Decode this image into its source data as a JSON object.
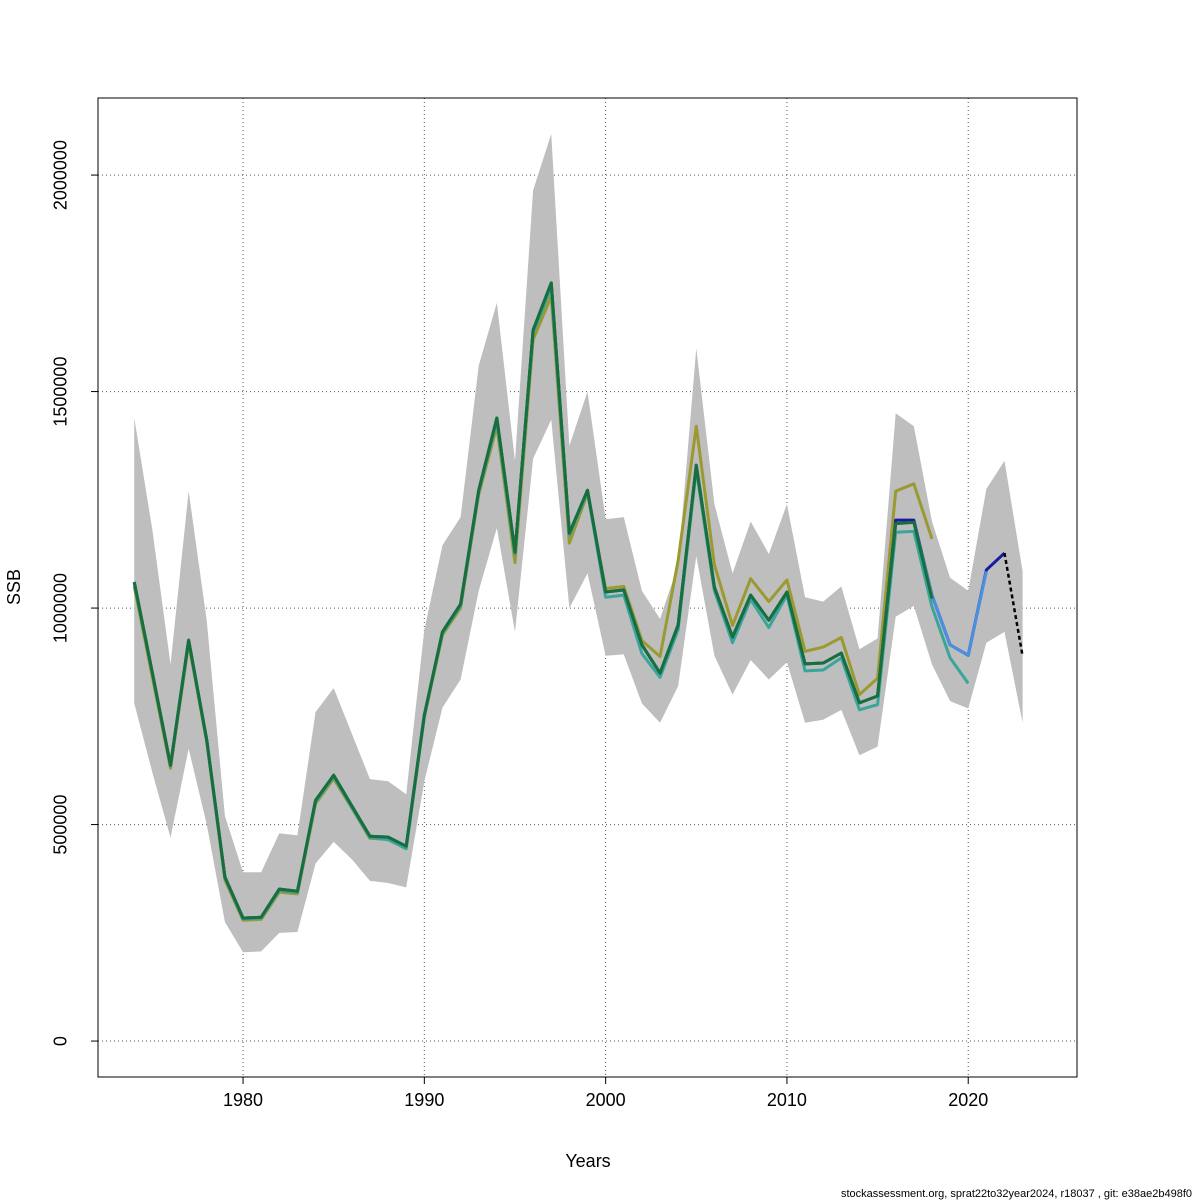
{
  "chart_data": {
    "type": "line",
    "xlabel": "Years",
    "ylabel": "SSB",
    "footnote": "stockassessment.org, sprat22to32year2024, r18037 , git: e38ae2b498f0",
    "x": [
      1974,
      1975,
      1976,
      1977,
      1978,
      1979,
      1980,
      1981,
      1982,
      1983,
      1984,
      1985,
      1986,
      1987,
      1988,
      1989,
      1990,
      1991,
      1992,
      1993,
      1994,
      1995,
      1996,
      1997,
      1998,
      1999,
      2000,
      2001,
      2002,
      2003,
      2004,
      2005,
      2006,
      2007,
      2008,
      2009,
      2010,
      2011,
      2012,
      2013,
      2014,
      2015,
      2016,
      2017,
      2018,
      2019,
      2020,
      2021,
      2022,
      2023
    ],
    "xlim": [
      1972,
      2026
    ],
    "ylim": [
      -83000,
      2178000
    ],
    "xticks": [
      1980,
      1990,
      2000,
      2010,
      2020
    ],
    "yticks": [
      0,
      500000,
      1000000,
      1500000,
      2000000
    ],
    "grid": true,
    "band": {
      "color": "#bebebe",
      "lower": [
        780000,
        620000,
        470000,
        675000,
        500000,
        275000,
        205000,
        207000,
        250000,
        252000,
        410000,
        460000,
        420000,
        370000,
        365000,
        355000,
        600000,
        770000,
        835000,
        1040000,
        1185000,
        945000,
        1345000,
        1435000,
        1000000,
        1080000,
        890000,
        893000,
        780000,
        735000,
        820000,
        1120000,
        890000,
        800000,
        880000,
        835000,
        875000,
        735000,
        742000,
        765000,
        660000,
        680000,
        980000,
        1005000,
        870000,
        785000,
        768000,
        920000,
        945000,
        735000
      ],
      "upper": [
        1439000,
        1180000,
        870000,
        1270000,
        970000,
        520000,
        390000,
        390000,
        480000,
        475000,
        760000,
        815000,
        710000,
        605000,
        600000,
        570000,
        950000,
        1145000,
        1210000,
        1560000,
        1705000,
        1340000,
        1965000,
        2095000,
        1375000,
        1500000,
        1205000,
        1210000,
        1040000,
        975000,
        1100000,
        1600000,
        1240000,
        1080000,
        1200000,
        1125000,
        1240000,
        1025000,
        1015000,
        1050000,
        905000,
        930000,
        1450000,
        1420000,
        1200000,
        1070000,
        1040000,
        1275000,
        1340000,
        1085000
      ]
    },
    "series": [
      {
        "color": "#9a9a30",
        "dashed": false,
        "values": [
          1050000,
          840000,
          630000,
          918000,
          690000,
          372000,
          279000,
          281000,
          344000,
          340000,
          548000,
          606000,
          538000,
          468000,
          466000,
          446000,
          748000,
          938000,
          1000000,
          1262000,
          1420000,
          1105000,
          1620000,
          1720000,
          1150000,
          1265000,
          1045000,
          1050000,
          925000,
          888000,
          1110000,
          1420000,
          1100000,
          960000,
          1068000,
          1015000,
          1065000,
          900000,
          910000,
          932000,
          800000,
          838000,
          1270000,
          1287000,
          1160000,
          null,
          null,
          null,
          null,
          null
        ]
      },
      {
        "color": "#3aa59a",
        "dashed": false,
        "values": [
          1058000,
          848000,
          636000,
          924000,
          693000,
          377000,
          282000,
          284000,
          348000,
          343000,
          552000,
          611000,
          540000,
          470000,
          465000,
          444000,
          750000,
          942000,
          1005000,
          1268000,
          1432000,
          1124000,
          1635000,
          1740000,
          1168000,
          1268000,
          1025000,
          1030000,
          895000,
          840000,
          950000,
          1320000,
          1040000,
          920000,
          1020000,
          955000,
          1030000,
          855000,
          857000,
          885000,
          765000,
          777000,
          1175000,
          1177000,
          1003000,
          885000,
          826000,
          null,
          null,
          null
        ]
      },
      {
        "color": "#1a1aa0",
        "dashed": false,
        "values": [
          1060000,
          850000,
          637000,
          926000,
          695000,
          379000,
          284000,
          286000,
          351000,
          346000,
          556000,
          614000,
          543000,
          473000,
          471000,
          450000,
          753000,
          945000,
          1009000,
          1272000,
          1439000,
          1129000,
          1642000,
          1751000,
          1173000,
          1272000,
          1037000,
          1042000,
          915000,
          850000,
          961000,
          1330000,
          1048000,
          933000,
          1030000,
          972000,
          1037000,
          871000,
          873000,
          896000,
          781000,
          797000,
          1203000,
          1203000,
          1030000,
          915000,
          891000,
          1088000,
          1127000,
          null
        ]
      },
      {
        "color": "#4a90e0",
        "dashed": false,
        "values": [
          1060000,
          850000,
          637000,
          926000,
          695000,
          379000,
          284000,
          286000,
          351000,
          346000,
          556000,
          614000,
          543000,
          473000,
          471000,
          450000,
          753000,
          945000,
          1009000,
          1272000,
          1439000,
          1129000,
          1642000,
          1751000,
          1173000,
          1272000,
          1037000,
          1042000,
          915000,
          850000,
          961000,
          1330000,
          1048000,
          933000,
          1030000,
          972000,
          1037000,
          871000,
          873000,
          896000,
          781000,
          797000,
          1195000,
          1198000,
          1030000,
          915000,
          891000,
          1085000,
          null,
          null
        ]
      },
      {
        "color": "#17703a",
        "dashed": false,
        "values": [
          1060000,
          850000,
          637000,
          926000,
          695000,
          379000,
          284000,
          286000,
          351000,
          346000,
          556000,
          614000,
          543000,
          473000,
          471000,
          450000,
          753000,
          945000,
          1009000,
          1272000,
          1439000,
          1129000,
          1642000,
          1751000,
          1173000,
          1272000,
          1037000,
          1042000,
          915000,
          850000,
          961000,
          1330000,
          1048000,
          933000,
          1030000,
          972000,
          1037000,
          871000,
          873000,
          896000,
          781000,
          797000,
          1195000,
          1198000,
          1022000,
          null,
          null,
          null,
          null,
          null
        ]
      },
      {
        "color": "#000000",
        "dashed": true,
        "values": [
          null,
          null,
          null,
          null,
          null,
          null,
          null,
          null,
          null,
          null,
          null,
          null,
          null,
          null,
          null,
          null,
          null,
          null,
          null,
          null,
          null,
          null,
          null,
          null,
          null,
          null,
          null,
          null,
          null,
          null,
          null,
          null,
          null,
          null,
          null,
          null,
          null,
          null,
          null,
          null,
          null,
          null,
          null,
          null,
          null,
          null,
          null,
          null,
          1127000,
          889000
        ]
      }
    ]
  }
}
